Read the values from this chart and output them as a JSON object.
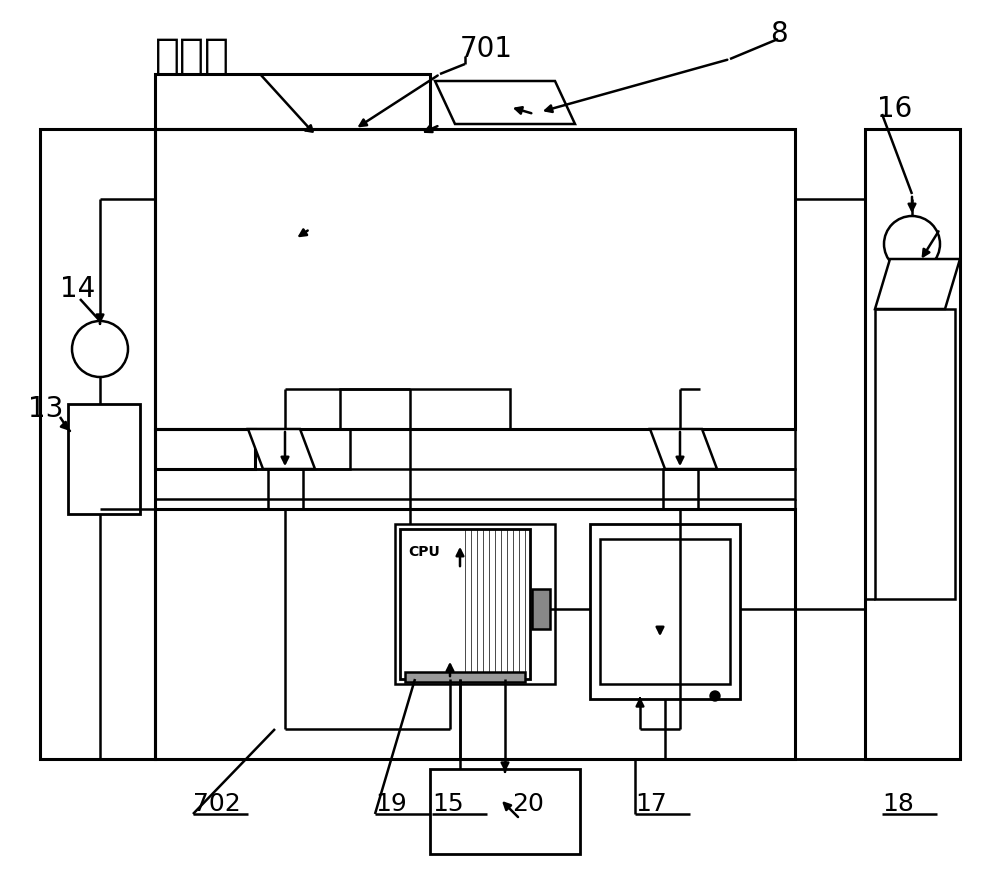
{
  "bg": "#ffffff",
  "lc": "#000000",
  "labels": {
    "title_cn": "铣边机",
    "n8": "8",
    "n13": "13",
    "n14": "14",
    "n15": "15",
    "n16": "16",
    "n17": "17",
    "n18": "18",
    "n19": "19",
    "n20": "20",
    "n701": "701",
    "n702": "702",
    "cpu": "CPU"
  }
}
